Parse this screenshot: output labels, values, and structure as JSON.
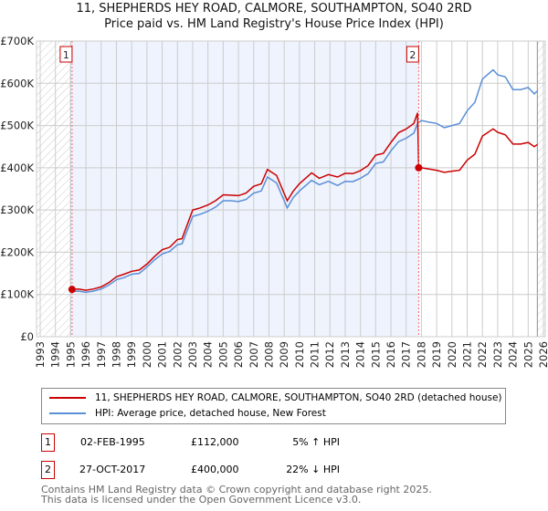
{
  "chart_data": {
    "type": "line",
    "title": "11, SHEPHERDS HEY ROAD, CALMORE, SOUTHAMPTON, SO40 2RD",
    "subtitle": "Price paid vs. HM Land Registry's House Price Index (HPI)",
    "xlim": [
      1993,
      2026
    ],
    "ylim": [
      0,
      700000
    ],
    "x_ticks": [
      "1993",
      "1994",
      "1995",
      "1996",
      "1997",
      "1998",
      "1999",
      "2000",
      "2001",
      "2002",
      "2003",
      "2004",
      "2005",
      "2006",
      "2007",
      "2008",
      "2009",
      "2010",
      "2011",
      "2012",
      "2013",
      "2014",
      "2015",
      "2016",
      "2017",
      "2018",
      "2019",
      "2020",
      "2021",
      "2022",
      "2023",
      "2024",
      "2025",
      "2026"
    ],
    "y_ticks": [
      {
        "v": 0,
        "label": "£0"
      },
      {
        "v": 100000,
        "label": "£100K"
      },
      {
        "v": 200000,
        "label": "£200K"
      },
      {
        "v": 300000,
        "label": "£300K"
      },
      {
        "v": 400000,
        "label": "£400K"
      },
      {
        "v": 500000,
        "label": "£500K"
      },
      {
        "v": 600000,
        "label": "£600K"
      },
      {
        "v": 700000,
        "label": "£700K"
      }
    ],
    "grid": true,
    "series": [
      {
        "name": "11, SHEPHERDS HEY ROAD, CALMORE, SOUTHAMPTON, SO40 2RD (detached house)",
        "color": "#cc0000",
        "x": [
          1995.09,
          1995.5,
          1996,
          1996.5,
          1997,
          1997.5,
          1998,
          1998.5,
          1999,
          1999.5,
          2000,
          2000.5,
          2001,
          2001.5,
          2002,
          2002.3,
          2003,
          2003.5,
          2004,
          2004.5,
          2005,
          2005.5,
          2006,
          2006.5,
          2007,
          2007.5,
          2007.9,
          2008.5,
          2009.2,
          2009.6,
          2010,
          2010.8,
          2011.3,
          2011.9,
          2012.5,
          2013,
          2013.5,
          2014,
          2014.5,
          2015,
          2015.5,
          2016,
          2016.5,
          2017,
          2017.5,
          2017.75,
          2017.82,
          2018,
          2018.5,
          2019,
          2019.5,
          2020,
          2020.5,
          2021,
          2021.5,
          2022,
          2022.7,
          2023,
          2023.5,
          2024,
          2024.5,
          2025,
          2025.4,
          2025.6
        ],
        "y": [
          112000,
          113000,
          110000,
          113000,
          118000,
          128000,
          142000,
          148000,
          155000,
          158000,
          172000,
          190000,
          206000,
          212000,
          230000,
          232000,
          300000,
          305000,
          312000,
          322000,
          336000,
          335000,
          334000,
          340000,
          356000,
          362000,
          396000,
          382000,
          322000,
          345000,
          362000,
          388000,
          375000,
          384000,
          378000,
          387000,
          386000,
          393000,
          405000,
          430000,
          434000,
          460000,
          483000,
          492000,
          505000,
          530000,
          400000,
          400000,
          397000,
          394000,
          389000,
          392000,
          394000,
          418000,
          432000,
          475000,
          492000,
          484000,
          478000,
          456000,
          456000,
          460000,
          450000,
          455000
        ]
      },
      {
        "name": "HPI: Average price, detached house, New Forest",
        "color": "#5b8fd6",
        "x": [
          1995.09,
          1995.5,
          1996,
          1996.5,
          1997,
          1997.5,
          1998,
          1998.5,
          1999,
          1999.5,
          2000,
          2000.5,
          2001,
          2001.5,
          2002,
          2002.3,
          2003,
          2003.5,
          2004,
          2004.5,
          2005,
          2005.5,
          2006,
          2006.5,
          2007,
          2007.5,
          2007.9,
          2008.5,
          2009.2,
          2009.6,
          2010,
          2010.8,
          2011.3,
          2011.9,
          2012.5,
          2013,
          2013.5,
          2014,
          2014.5,
          2015,
          2015.5,
          2016,
          2016.5,
          2017,
          2017.5,
          2017.75,
          2018,
          2018.5,
          2019,
          2019.5,
          2020,
          2020.5,
          2021,
          2021.5,
          2022,
          2022.7,
          2023,
          2023.5,
          2024,
          2024.5,
          2025,
          2025.4,
          2025.6
        ],
        "y": [
          107000,
          108000,
          105000,
          108000,
          113000,
          122000,
          135000,
          140000,
          148000,
          150000,
          165000,
          182000,
          196000,
          202000,
          218000,
          220000,
          285000,
          290000,
          297000,
          307000,
          322000,
          322000,
          320000,
          325000,
          340000,
          345000,
          378000,
          364000,
          305000,
          330000,
          345000,
          370000,
          360000,
          368000,
          358000,
          368000,
          367000,
          375000,
          386000,
          410000,
          414000,
          440000,
          462000,
          470000,
          482000,
          505000,
          512000,
          508000,
          505000,
          495000,
          500000,
          505000,
          535000,
          555000,
          610000,
          632000,
          620000,
          615000,
          585000,
          585000,
          590000,
          575000,
          582000
        ]
      }
    ],
    "annotations": [
      {
        "label": "1",
        "x": 1995.09,
        "y": 112000
      },
      {
        "label": "2",
        "x": 2017.82,
        "y": 400000
      }
    ],
    "shaded_range": [
      1995.09,
      2017.82
    ],
    "hatched_before": 1995.0,
    "hatched_after": 2025.6
  },
  "legend": {
    "items": [
      "11, SHEPHERDS HEY ROAD, CALMORE, SOUTHAMPTON, SO40 2RD (detached house)",
      "HPI: Average price, detached house, New Forest"
    ]
  },
  "sales": [
    {
      "num": "1",
      "date": "02-FEB-1995",
      "price": "£112,000",
      "hpi": "5% ↑ HPI"
    },
    {
      "num": "2",
      "date": "27-OCT-2017",
      "price": "£400,000",
      "hpi": "22% ↓ HPI"
    }
  ],
  "footer": {
    "line1": "Contains HM Land Registry data © Crown copyright and database right 2025.",
    "line2": "This data is licensed under the Open Government Licence v3.0."
  }
}
